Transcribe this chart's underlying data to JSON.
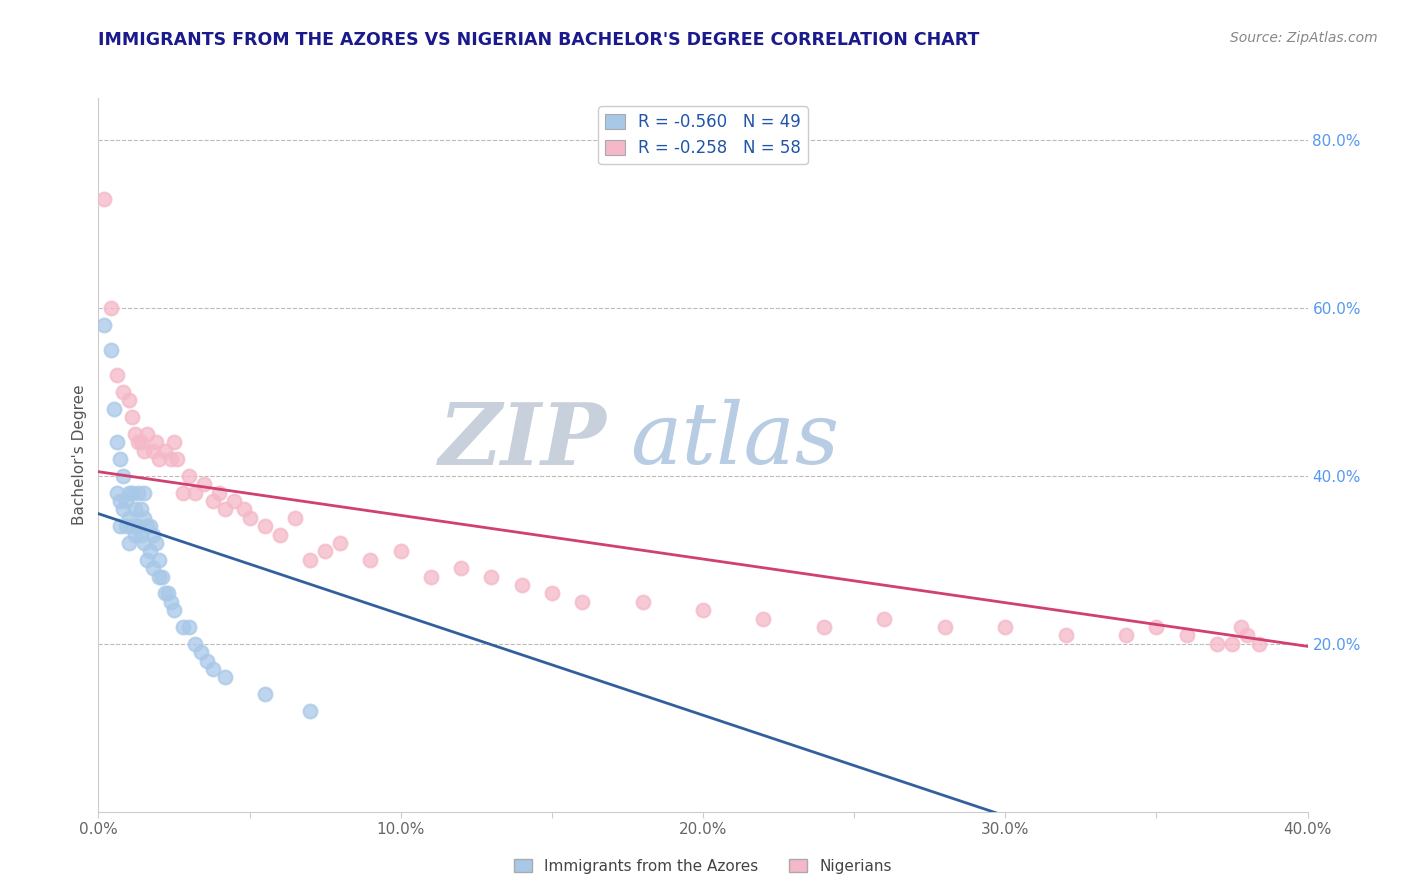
{
  "title": "IMMIGRANTS FROM THE AZORES VS NIGERIAN BACHELOR'S DEGREE CORRELATION CHART",
  "source": "Source: ZipAtlas.com",
  "ylabel": "Bachelor's Degree",
  "legend_label1": "Immigrants from the Azores",
  "legend_label2": "Nigerians",
  "r1": -0.56,
  "n1": 49,
  "r2": -0.258,
  "n2": 58,
  "xlim": [
    0.0,
    0.4
  ],
  "ylim": [
    0.0,
    0.85
  ],
  "xtick_labels": [
    "0.0%",
    "",
    "10.0%",
    "",
    "20.0%",
    "",
    "30.0%",
    "",
    "40.0%"
  ],
  "xtick_vals": [
    0.0,
    0.05,
    0.1,
    0.15,
    0.2,
    0.25,
    0.3,
    0.35,
    0.4
  ],
  "ytick_labels_right": [
    "20.0%",
    "40.0%",
    "60.0%",
    "80.0%"
  ],
  "ytick_vals_right": [
    0.2,
    0.4,
    0.6,
    0.8
  ],
  "color_blue": "#a8c8e8",
  "color_pink": "#f4b8c8",
  "color_line_blue": "#3060a0",
  "color_line_pink": "#d04070",
  "watermark_color": "#d4dff0",
  "title_color": "#1a1a8c",
  "source_color": "#888888",
  "axis_label_color": "#555555",
  "tick_label_color_right": "#5599ee",
  "background_color": "#ffffff",
  "blue_scatter_x": [
    0.002,
    0.004,
    0.005,
    0.006,
    0.006,
    0.007,
    0.007,
    0.007,
    0.008,
    0.008,
    0.009,
    0.009,
    0.01,
    0.01,
    0.01,
    0.011,
    0.011,
    0.012,
    0.012,
    0.013,
    0.013,
    0.014,
    0.014,
    0.015,
    0.015,
    0.015,
    0.016,
    0.016,
    0.017,
    0.017,
    0.018,
    0.018,
    0.019,
    0.02,
    0.02,
    0.021,
    0.022,
    0.023,
    0.024,
    0.025,
    0.028,
    0.03,
    0.032,
    0.034,
    0.036,
    0.038,
    0.042,
    0.055,
    0.07
  ],
  "blue_scatter_y": [
    0.58,
    0.55,
    0.48,
    0.44,
    0.38,
    0.42,
    0.37,
    0.34,
    0.4,
    0.36,
    0.37,
    0.34,
    0.38,
    0.35,
    0.32,
    0.38,
    0.34,
    0.36,
    0.33,
    0.38,
    0.34,
    0.36,
    0.33,
    0.38,
    0.35,
    0.32,
    0.34,
    0.3,
    0.34,
    0.31,
    0.33,
    0.29,
    0.32,
    0.3,
    0.28,
    0.28,
    0.26,
    0.26,
    0.25,
    0.24,
    0.22,
    0.22,
    0.2,
    0.19,
    0.18,
    0.17,
    0.16,
    0.14,
    0.12
  ],
  "pink_scatter_x": [
    0.002,
    0.004,
    0.006,
    0.008,
    0.01,
    0.011,
    0.012,
    0.013,
    0.014,
    0.015,
    0.016,
    0.018,
    0.019,
    0.02,
    0.022,
    0.024,
    0.025,
    0.026,
    0.028,
    0.03,
    0.032,
    0.035,
    0.038,
    0.04,
    0.042,
    0.045,
    0.048,
    0.05,
    0.055,
    0.06,
    0.065,
    0.07,
    0.075,
    0.08,
    0.09,
    0.1,
    0.11,
    0.12,
    0.13,
    0.14,
    0.15,
    0.16,
    0.18,
    0.2,
    0.22,
    0.24,
    0.26,
    0.28,
    0.3,
    0.32,
    0.34,
    0.35,
    0.36,
    0.37,
    0.375,
    0.378,
    0.38,
    0.384
  ],
  "pink_scatter_y": [
    0.73,
    0.6,
    0.52,
    0.5,
    0.49,
    0.47,
    0.45,
    0.44,
    0.44,
    0.43,
    0.45,
    0.43,
    0.44,
    0.42,
    0.43,
    0.42,
    0.44,
    0.42,
    0.38,
    0.4,
    0.38,
    0.39,
    0.37,
    0.38,
    0.36,
    0.37,
    0.36,
    0.35,
    0.34,
    0.33,
    0.35,
    0.3,
    0.31,
    0.32,
    0.3,
    0.31,
    0.28,
    0.29,
    0.28,
    0.27,
    0.26,
    0.25,
    0.25,
    0.24,
    0.23,
    0.22,
    0.23,
    0.22,
    0.22,
    0.21,
    0.21,
    0.22,
    0.21,
    0.2,
    0.2,
    0.22,
    0.21,
    0.2
  ]
}
